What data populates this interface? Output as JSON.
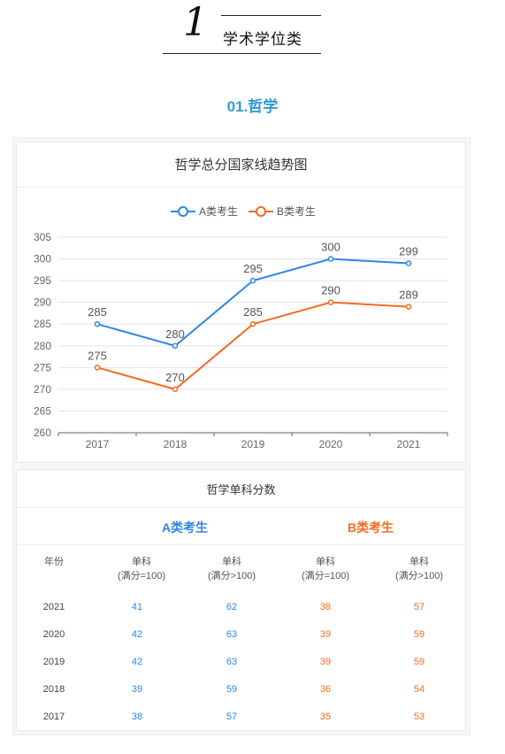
{
  "header": {
    "number": "1",
    "title": "学术学位类"
  },
  "section": {
    "title": "01.哲学"
  },
  "colors": {
    "series_a": "#2f86e6",
    "series_b": "#f36b20",
    "section_title": "#2f9ad0"
  },
  "chart_data": {
    "type": "line",
    "title": "哲学总分国家线趋势图",
    "categories": [
      "2017",
      "2018",
      "2019",
      "2020",
      "2021"
    ],
    "series": [
      {
        "name": "A类考生",
        "values": [
          285,
          280,
          295,
          300,
          299
        ],
        "color": "#2f86e6"
      },
      {
        "name": "B类考生",
        "values": [
          275,
          270,
          285,
          290,
          289
        ],
        "color": "#f36b20"
      }
    ],
    "ylim": [
      260,
      305
    ],
    "yticks": [
      260,
      265,
      270,
      275,
      280,
      285,
      290,
      295,
      300,
      305
    ],
    "grid": true,
    "legend_position": "top"
  },
  "table": {
    "title": "哲学单科分数",
    "group_a": "A类考生",
    "group_b": "B类考生",
    "headers": [
      {
        "line1": "年份",
        "line2": ""
      },
      {
        "line1": "单科",
        "line2": "(满分=100)"
      },
      {
        "line1": "单科",
        "line2": "(满分>100)"
      },
      {
        "line1": "单科",
        "line2": "(满分=100)"
      },
      {
        "line1": "单科",
        "line2": "(满分>100)"
      }
    ],
    "rows": [
      {
        "year": "2021",
        "a1": "41",
        "a2": "62",
        "b1": "38",
        "b2": "57"
      },
      {
        "year": "2020",
        "a1": "42",
        "a2": "63",
        "b1": "39",
        "b2": "59"
      },
      {
        "year": "2019",
        "a1": "42",
        "a2": "63",
        "b1": "39",
        "b2": "59"
      },
      {
        "year": "2018",
        "a1": "39",
        "a2": "59",
        "b1": "36",
        "b2": "54"
      },
      {
        "year": "2017",
        "a1": "38",
        "a2": "57",
        "b1": "35",
        "b2": "53"
      }
    ]
  }
}
